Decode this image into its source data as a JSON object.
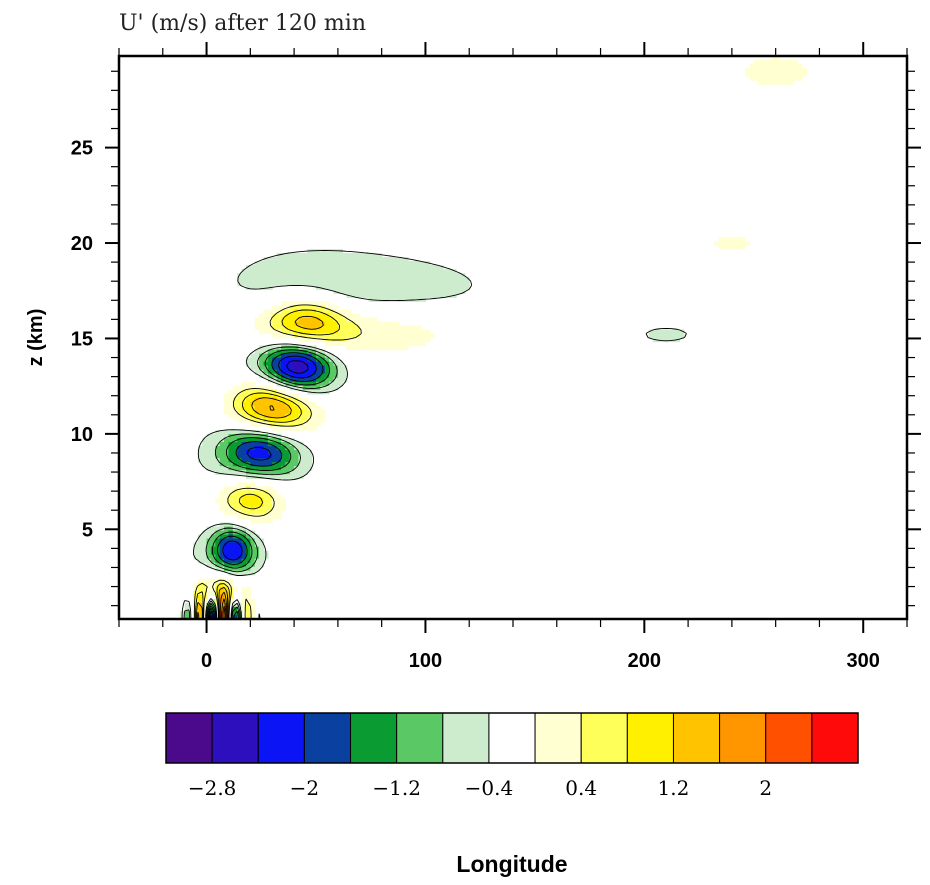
{
  "chart_data": {
    "type": "heatmap",
    "title": "U' (m/s) after 120 min",
    "xlabel": "Longitude",
    "ylabel": "z (km)",
    "xlim": [
      -40,
      320
    ],
    "ylim": [
      0.3,
      29.8
    ],
    "x_ticks": [
      "0",
      "100",
      "200",
      "300"
    ],
    "x_tick_values": [
      0,
      100,
      200,
      300
    ],
    "y_ticks": [
      "5",
      "10",
      "15",
      "20",
      "25"
    ],
    "y_tick_values": [
      5,
      10,
      15,
      20,
      25
    ],
    "colorbar": {
      "colors": [
        "#4b0a8c",
        "#2d0fbe",
        "#0a14f5",
        "#0a41a0",
        "#0a9b32",
        "#5ac864",
        "#cdebcd",
        "#ffffff",
        "#ffffd2",
        "#ffff5a",
        "#fff000",
        "#ffc300",
        "#ff9600",
        "#ff5000",
        "#ff0a0a"
      ],
      "labels": [
        "−2.8",
        "−2",
        "−1.2",
        "−0.4",
        "0.4",
        "1.2",
        "2"
      ],
      "label_values": [
        -2.8,
        -2.0,
        -1.2,
        -0.4,
        0.4,
        1.2,
        2.0
      ],
      "levels": [
        -3.2,
        -2.8,
        -2.4,
        -2.0,
        -1.6,
        -1.2,
        -0.8,
        -0.4,
        0.4,
        0.8,
        1.2,
        1.6,
        2.0,
        2.4,
        2.8,
        3.2
      ]
    },
    "features": [
      {
        "kind": "max",
        "x": 30,
        "z": 11.3,
        "value": 3.0
      },
      {
        "kind": "min",
        "x": 41,
        "z": 13.5,
        "value": -3.0
      },
      {
        "kind": "min",
        "x": 25,
        "z": 9.2,
        "value": -2.4
      },
      {
        "kind": "max",
        "x": 45,
        "z": 15.8,
        "value": 1.7
      },
      {
        "kind": "max",
        "x": 20,
        "z": 6.6,
        "value": 1.8
      },
      {
        "kind": "min",
        "x": 12,
        "z": 3.9,
        "value": -2.1
      },
      {
        "kind": "max",
        "x": 2,
        "z": 1.2,
        "value": 2.8
      },
      {
        "kind": "min",
        "x": -2,
        "z": 0.6,
        "value": -2.0
      }
    ]
  }
}
